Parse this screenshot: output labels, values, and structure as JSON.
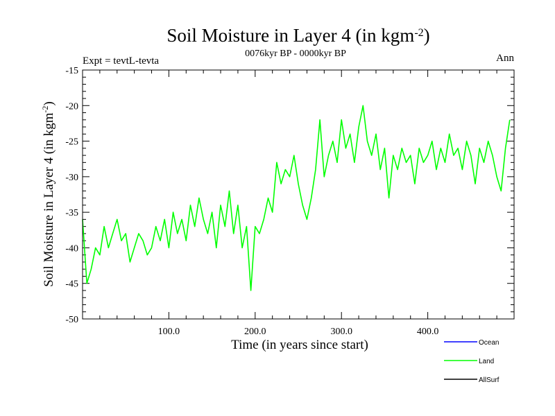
{
  "chart_data": {
    "type": "line",
    "title": "Soil Moisture in Layer 4 (in kgm",
    "title_sup": "-2",
    "title_end": ")",
    "subtitle": "0076kyr BP - 0000kyr BP",
    "experiment_label": "Expt = tevtL-tevta",
    "season_label": "Ann",
    "xlabel": "Time (in years since start)",
    "ylabel": "Soil Moisture in Layer 4 (in kgm",
    "ylabel_sup": "-2",
    "ylabel_end": ")",
    "xlim": [
      0,
      500
    ],
    "ylim": [
      -50,
      -15
    ],
    "x_ticks": [
      100,
      200,
      300,
      400
    ],
    "x_tick_labels": [
      "100.0",
      "200.0",
      "300.0",
      "400.0"
    ],
    "y_ticks": [
      -50,
      -45,
      -40,
      -35,
      -30,
      -25,
      -20,
      -15
    ],
    "y_tick_labels": [
      "-50",
      "-45",
      "-40",
      "-35",
      "-30",
      "-25",
      "-20",
      "-15"
    ],
    "legend_position": "bottom-right",
    "colors": {
      "Ocean": "#0000ff",
      "Land": "#00ff00",
      "AllSurf": "#000000"
    },
    "series": [
      {
        "name": "Ocean",
        "values": []
      },
      {
        "name": "Land",
        "x": [
          0,
          5,
          10,
          15,
          20,
          25,
          30,
          35,
          40,
          45,
          50,
          55,
          60,
          65,
          70,
          75,
          80,
          85,
          90,
          95,
          100,
          105,
          110,
          115,
          120,
          125,
          130,
          135,
          140,
          145,
          150,
          155,
          160,
          165,
          170,
          175,
          180,
          185,
          190,
          195,
          200,
          205,
          210,
          215,
          220,
          225,
          230,
          235,
          240,
          245,
          250,
          255,
          260,
          265,
          270,
          275,
          280,
          285,
          290,
          295,
          300,
          305,
          310,
          315,
          320,
          325,
          330,
          335,
          340,
          345,
          350,
          355,
          360,
          365,
          370,
          375,
          380,
          385,
          390,
          395,
          400,
          405,
          410,
          415,
          420,
          425,
          430,
          435,
          440,
          445,
          450,
          455,
          460,
          465,
          470,
          475,
          480,
          485,
          490,
          495
        ],
        "values": [
          -36,
          -45,
          -43,
          -40,
          -41,
          -37,
          -40,
          -38,
          -36,
          -39,
          -38,
          -42,
          -40,
          -38,
          -39,
          -41,
          -40,
          -37,
          -39,
          -36,
          -40,
          -35,
          -38,
          -36,
          -39,
          -34,
          -37,
          -33,
          -36,
          -38,
          -35,
          -40,
          -34,
          -37,
          -32,
          -38,
          -34,
          -40,
          -37,
          -46,
          -37,
          -38,
          -36,
          -33,
          -35,
          -28,
          -31,
          -29,
          -30,
          -27,
          -31,
          -34,
          -36,
          -33,
          -29,
          -22,
          -30,
          -27,
          -25,
          -28,
          -22,
          -26,
          -24,
          -28,
          -23,
          -20,
          -25,
          -27,
          -24,
          -29,
          -26,
          -33,
          -27,
          -29,
          -26,
          -28,
          -27,
          -31,
          -26,
          -28,
          -27,
          -25,
          -29,
          -26,
          -28,
          -24,
          -27,
          -26,
          -29,
          -25,
          -27,
          -31,
          -26,
          -28,
          -25,
          -27,
          -30,
          -32,
          -26,
          -22
        ]
      },
      {
        "name": "AllSurf",
        "values": []
      }
    ]
  }
}
